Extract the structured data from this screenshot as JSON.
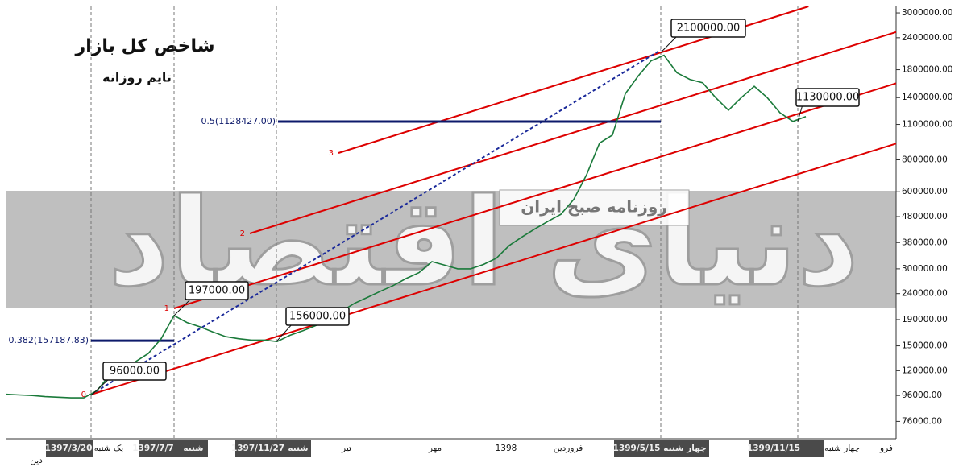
{
  "chart_data": {
    "type": "line",
    "title": "شاخص کل بازار",
    "subtitle": "تایم روزانه",
    "log_scale": true,
    "ylim": [
      65000,
      3180000
    ],
    "yticks": [
      {
        "value": 76000,
        "label": "76000.00"
      },
      {
        "value": 96000,
        "label": "96000.00"
      },
      {
        "value": 120000,
        "label": "120000.00"
      },
      {
        "value": 150000,
        "label": "150000.00"
      },
      {
        "value": 190000,
        "label": "190000.00"
      },
      {
        "value": 240000,
        "label": "240000.00"
      },
      {
        "value": 300000,
        "label": "300000.00"
      },
      {
        "value": 380000,
        "label": "380000.00"
      },
      {
        "value": 480000,
        "label": "480000.00"
      },
      {
        "value": 600000,
        "label": "600000.00"
      },
      {
        "value": 800000,
        "label": "800000.00"
      },
      {
        "value": 1100000,
        "label": "1100000.00"
      },
      {
        "value": 1400000,
        "label": "1400000.00"
      },
      {
        "value": 1800000,
        "label": "1800000.00"
      },
      {
        "value": 2400000,
        "label": "2400000.00"
      },
      {
        "value": 3000000,
        "label": "3000000.00"
      }
    ],
    "series": [
      {
        "color": "#1a7a3a",
        "values": [
          97000,
          96500,
          96000,
          95000,
          94500,
          94000,
          94000,
          100000,
          115000,
          122000,
          130000,
          140000,
          160000,
          197000,
          185000,
          178000,
          170000,
          163000,
          160000,
          158000,
          158000,
          156000,
          165000,
          172000,
          180000,
          190000,
          205000,
          220000,
          232000,
          245000,
          258000,
          275000,
          290000,
          320000,
          310000,
          300000,
          300000,
          312000,
          330000,
          370000,
          400000,
          430000,
          460000,
          490000,
          560000,
          700000,
          930000,
          1000000,
          1450000,
          1700000,
          1950000,
          2050000,
          1750000,
          1650000,
          1600000,
          1400000,
          1250000,
          1400000,
          1550000,
          1400000,
          1220000,
          1130000,
          1180000
        ]
      }
    ],
    "callouts": [
      {
        "label": "96000.00",
        "value": 96000
      },
      {
        "label": "197000.00",
        "value": 197000
      },
      {
        "label": "156000.00",
        "value": 156000
      },
      {
        "label": "2100000.00",
        "value": 2100000
      },
      {
        "label": "1130000.00",
        "value": 1130000
      }
    ],
    "fib_levels": [
      {
        "label": "0.382(157187.83)",
        "value": 157187.83
      },
      {
        "label": "0.5(1128427.00)",
        "value": 1128427
      }
    ],
    "channel_labels": [
      "0",
      "1",
      "2",
      "3"
    ],
    "x_labels": [
      "دین",
      "1397/3/20",
      "یک شنبه",
      "1397/7/7",
      "شنبه",
      "1397/11/27",
      "شنبه",
      "تیر",
      "مهر",
      "1398",
      "فروردین",
      "1399/5/15",
      "چهار شنبه",
      "1399/11/15",
      "چهار شنبه",
      "فرو"
    ],
    "watermark": "دنیای اقتصاد",
    "watermark_sub": "روزنامه صبح ایران"
  }
}
